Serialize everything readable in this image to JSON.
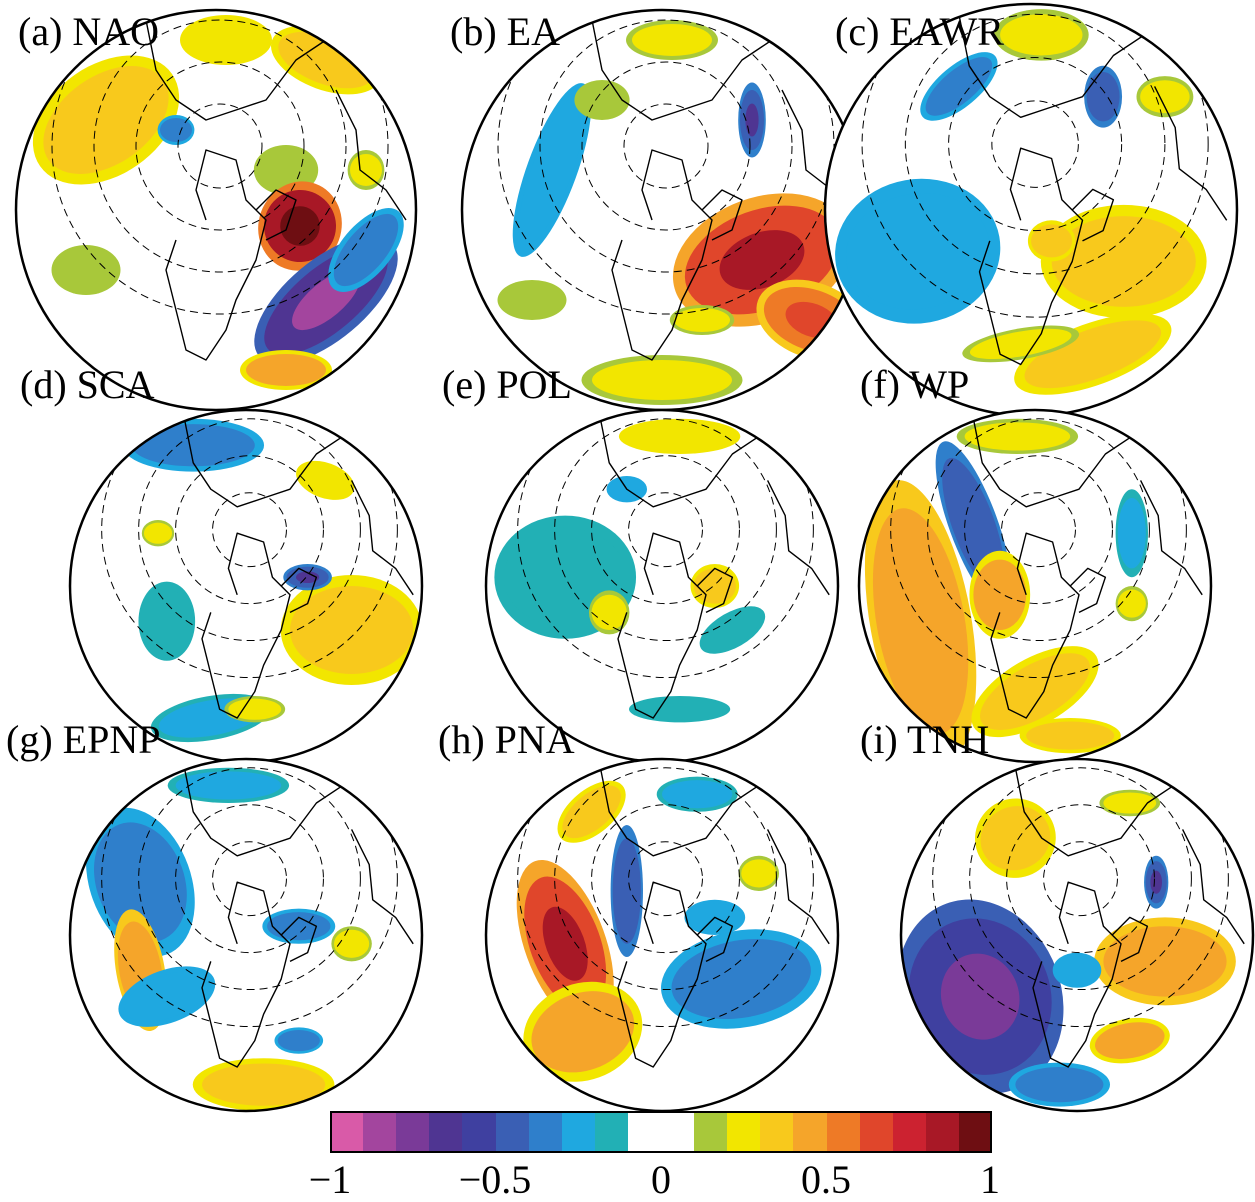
{
  "panels": [
    {
      "id": "a",
      "title": "(a) NAO"
    },
    {
      "id": "b",
      "title": "(b) EA"
    },
    {
      "id": "c",
      "title": "(c) EAWR"
    },
    {
      "id": "d",
      "title": "(d) SCA"
    },
    {
      "id": "e",
      "title": "(e) POL"
    },
    {
      "id": "f",
      "title": "(f) WP"
    },
    {
      "id": "g",
      "title": "(g) EPNP"
    },
    {
      "id": "h",
      "title": "(h) PNA"
    },
    {
      "id": "i",
      "title": "(i) TNH"
    }
  ],
  "colorbar": {
    "min": -1,
    "max": 1,
    "tick_labels": [
      "−1",
      "−0.5",
      "0",
      "0.5",
      "1"
    ],
    "tick_values": [
      -1,
      -0.5,
      0,
      0.5,
      1
    ],
    "colors": [
      "#d95aa8",
      "#a3459e",
      "#7a3a98",
      "#4f3592",
      "#3f40a0",
      "#3a5fb4",
      "#2f7fcb",
      "#1fa8e0",
      "#22b0b5",
      "#ffffff",
      "#ffffff",
      "#a8c83a",
      "#f2e600",
      "#f8c91c",
      "#f5a52a",
      "#ee7a26",
      "#e0462b",
      "#cc2230",
      "#a81826",
      "#6e0e12"
    ]
  }
}
